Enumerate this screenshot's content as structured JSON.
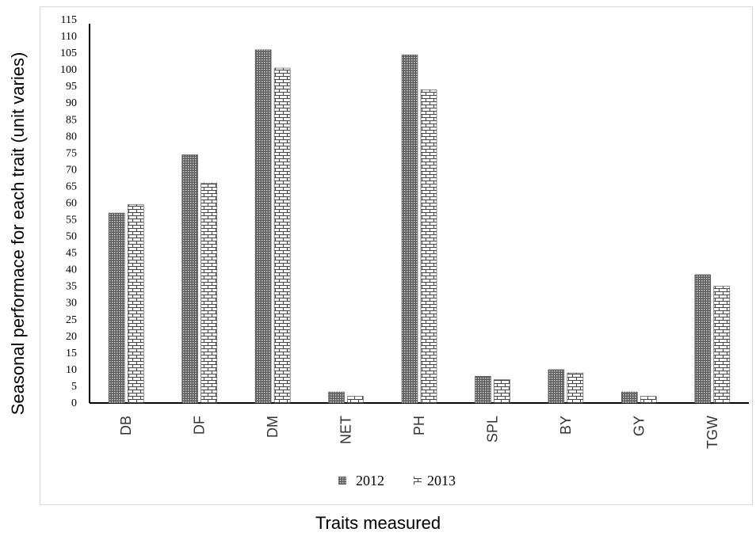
{
  "chart_data": {
    "type": "bar",
    "title": "",
    "xlabel": "Traits measured",
    "ylabel": "Seasonal performace for each trait (unit varies)",
    "ylim": [
      0,
      115
    ],
    "ytick_step": 5,
    "grid": false,
    "legend_placement": "bottom",
    "categories": [
      "DB",
      "DF",
      "DM",
      "NET",
      "PH",
      "SPL",
      "BY",
      "GY",
      "TGW"
    ],
    "series": [
      {
        "name": "2012",
        "values": [
          57,
          74.5,
          106,
          3.3,
          104.5,
          8,
          10,
          3.3,
          38.5
        ],
        "pattern": "dotted-dark"
      },
      {
        "name": "2013",
        "values": [
          59.5,
          66,
          100.5,
          2,
          94,
          7,
          9,
          2,
          35
        ],
        "pattern": "brick"
      }
    ]
  }
}
